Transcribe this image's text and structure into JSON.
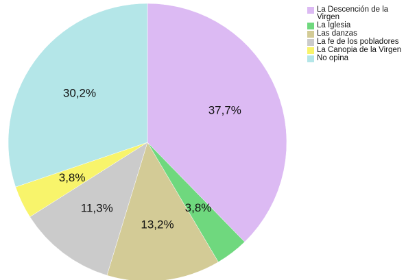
{
  "chart_data": {
    "type": "pie",
    "categories": [
      "La Descención de la Virgen",
      "La Iglesia",
      "Las danzas",
      "La fe de los pobladores",
      "La Canopia de la Virgen",
      "No opina"
    ],
    "values": [
      37.7,
      3.8,
      13.2,
      11.3,
      3.8,
      30.2
    ],
    "value_labels": [
      "37,7%",
      "3,8%",
      "13,2%",
      "11,3%",
      "3,8%",
      "30,2%"
    ],
    "colors": [
      "#dcbaf3",
      "#6fd87e",
      "#d3cb96",
      "#cbcbcb",
      "#f8f46b",
      "#b4e6e8"
    ],
    "legend": "top-right"
  }
}
